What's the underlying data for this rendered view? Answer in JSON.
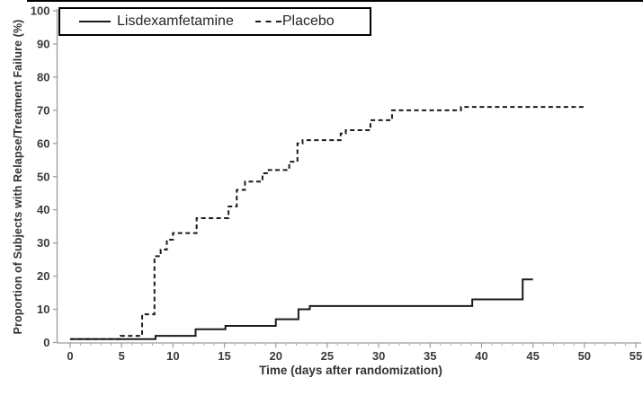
{
  "figure": {
    "background": "#ffffff",
    "border_top_color": "#000000"
  },
  "chart_data": {
    "type": "line",
    "subtype": "kaplan-meier-step",
    "title": "",
    "xlabel": "Time (days after randomization)",
    "ylabel": "Proportion of Subjects with Relapse/Treatment Failure (%)",
    "xlim": [
      0,
      55
    ],
    "ylim": [
      0,
      100
    ],
    "x_major_ticks": [
      0,
      5,
      10,
      15,
      20,
      25,
      30,
      35,
      40,
      45,
      50,
      55
    ],
    "x_minor_tick_interval": 1,
    "y_major_ticks": [
      0,
      10,
      20,
      30,
      40,
      50,
      60,
      70,
      80,
      90,
      100
    ],
    "grid": false,
    "colors": {
      "curve": "#1a1a1a",
      "axis": "#9b9b9b",
      "minor_tick": "#ababab",
      "tick_label": "#3b3b3b",
      "axis_title": "#333333"
    },
    "legend": {
      "position": "top-left-inside-box",
      "items": [
        {
          "label": "Lisdexamfetamine",
          "line": "solid"
        },
        {
          "label": "Placebo",
          "line": "dashed"
        }
      ]
    },
    "series": [
      {
        "name": "Lisdexamfetamine",
        "line": "solid",
        "color": "#1a1a1a",
        "steps": [
          [
            0,
            1
          ],
          [
            8.3,
            2
          ],
          [
            12.2,
            4
          ],
          [
            15.1,
            5
          ],
          [
            20,
            7
          ],
          [
            22.2,
            10
          ],
          [
            23.3,
            11
          ],
          [
            39.1,
            13
          ],
          [
            44,
            19
          ]
        ],
        "end_day": 45,
        "final_value": 19
      },
      {
        "name": "Placebo",
        "line": "dashed",
        "color": "#1a1a1a",
        "steps": [
          [
            0,
            1
          ],
          [
            4.9,
            2
          ],
          [
            7,
            8.5
          ],
          [
            8.2,
            26
          ],
          [
            8.8,
            28
          ],
          [
            9.4,
            31
          ],
          [
            10,
            33
          ],
          [
            12.3,
            37.5
          ],
          [
            15.4,
            41
          ],
          [
            16.2,
            46
          ],
          [
            17,
            48.5
          ],
          [
            18.7,
            51
          ],
          [
            19.3,
            52
          ],
          [
            21.3,
            54.5
          ],
          [
            22.1,
            60
          ],
          [
            22.6,
            61
          ],
          [
            26.3,
            63
          ],
          [
            26.8,
            64
          ],
          [
            29.2,
            67
          ],
          [
            31.3,
            70
          ],
          [
            38,
            71
          ]
        ],
        "end_day": 50,
        "final_value": 71
      }
    ]
  }
}
